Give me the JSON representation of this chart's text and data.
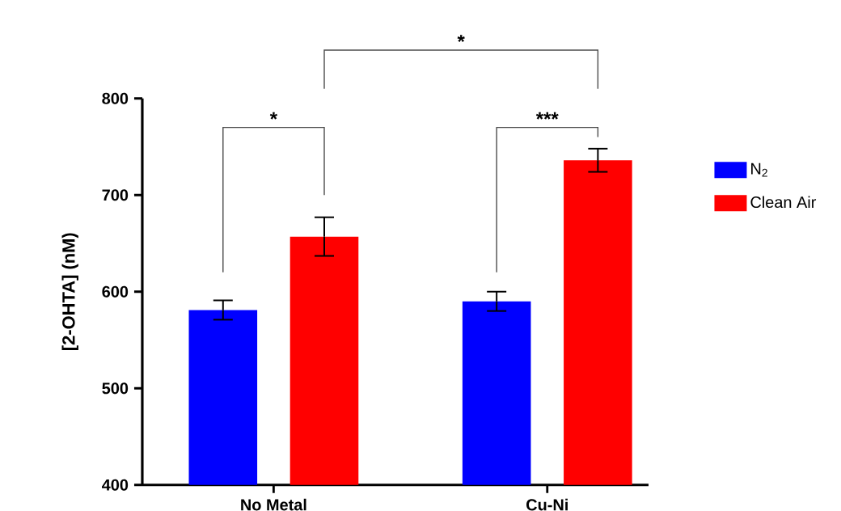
{
  "chart_data": {
    "type": "bar",
    "ylabel": "[2-OHTA] (nM)",
    "categories": [
      "No Metal",
      "Cu-Ni"
    ],
    "series": [
      {
        "name": "N$_{2}$",
        "color": "#0000ff",
        "values": [
          581,
          590
        ],
        "errors": [
          10,
          10
        ]
      },
      {
        "name": "Clean Air",
        "color": "#ff0000",
        "values": [
          657,
          736
        ],
        "errors": [
          20,
          12
        ]
      }
    ],
    "ylim": [
      400,
      800
    ],
    "yticks": [
      400,
      500,
      600,
      700,
      800
    ],
    "legend": "right",
    "grid": false,
    "annotations": [
      "*",
      "***",
      "*"
    ]
  }
}
